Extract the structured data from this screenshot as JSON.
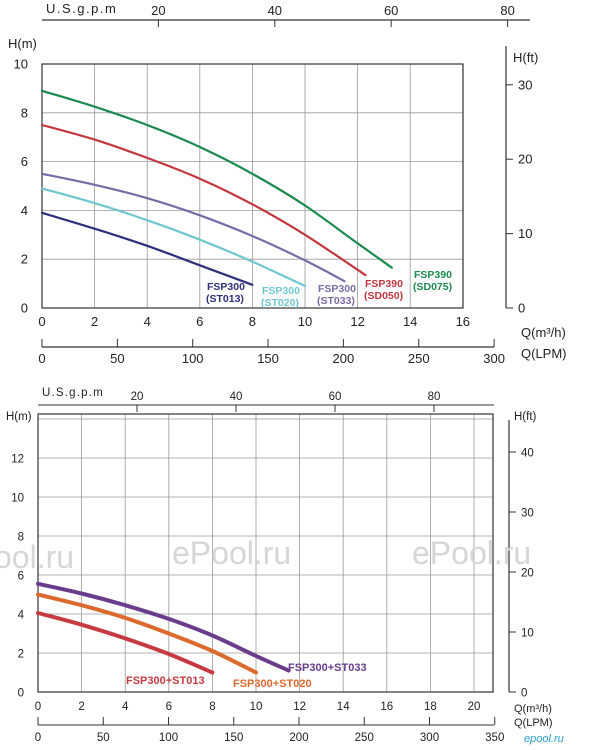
{
  "colors": {
    "navy": "#2f2f7a",
    "cyan": "#6fc6cf",
    "violet": "#7a6aa6",
    "red": "#c2373e",
    "green": "#1b8a4f",
    "axis": "#333333",
    "grid": "#9a9a9a",
    "top_purple": "#6a3d8c",
    "top_orange": "#dc6a2e",
    "top_red": "#c63a42",
    "watermark": "#cfcfcf",
    "logo": "#2a9fd0"
  },
  "chart_data": [
    {
      "type": "line",
      "usgpm_label": "U.S.g.p.m",
      "usgpm_ticks": [
        "20",
        "40",
        "60",
        "80"
      ],
      "hm_label": "H(m)",
      "hft_label": "H(ft)",
      "q_m3h_label": "Q(m³/h)",
      "q_lpm_label": "Q(LPM)",
      "x_m3h_ticks": [
        "0",
        "2",
        "4",
        "6",
        "8",
        "10",
        "12",
        "14",
        "16"
      ],
      "x_lpm_ticks": [
        "0",
        "50",
        "100",
        "150",
        "200",
        "250",
        "300"
      ],
      "y_m_ticks": [
        "0",
        "2",
        "4",
        "6",
        "8",
        "10"
      ],
      "y_ft_ticks": [
        "0",
        "10",
        "20",
        "30"
      ],
      "xlim": [
        0,
        16
      ],
      "ylim": [
        0,
        10
      ],
      "grid": true,
      "series": [
        {
          "name": "FSP300",
          "model": "(ST013)",
          "color": "navy",
          "x": [
            0,
            2,
            4,
            6,
            8
          ],
          "y": [
            3.9,
            3.25,
            2.55,
            1.75,
            0.95
          ]
        },
        {
          "name": "FSP300",
          "model": "(ST020)",
          "color": "cyan",
          "x": [
            0,
            2,
            4,
            6,
            8,
            10
          ],
          "y": [
            4.9,
            4.3,
            3.6,
            2.8,
            1.9,
            0.9
          ]
        },
        {
          "name": "FSP300",
          "model": "(ST033)",
          "color": "violet",
          "x": [
            0,
            2,
            4,
            6,
            8,
            10,
            11.5
          ],
          "y": [
            5.5,
            5.05,
            4.5,
            3.8,
            2.95,
            1.95,
            1.1
          ]
        },
        {
          "name": "FSP390",
          "model": "(SD050)",
          "color": "red",
          "x": [
            0,
            2,
            4,
            6,
            8,
            10,
            12.3
          ],
          "y": [
            7.5,
            6.9,
            6.15,
            5.3,
            4.25,
            3.0,
            1.35
          ]
        },
        {
          "name": "FSP390",
          "model": "(SD075)",
          "color": "green",
          "x": [
            0,
            2,
            4,
            6,
            8,
            10,
            12,
            13.3
          ],
          "y": [
            8.9,
            8.25,
            7.5,
            6.6,
            5.5,
            4.2,
            2.65,
            1.65
          ]
        }
      ]
    },
    {
      "type": "line",
      "usgpm_label": "U.S.g.p.m",
      "usgpm_ticks": [
        "20",
        "40",
        "60",
        "80"
      ],
      "hm_label": "H(m)",
      "hft_label": "H(ft)",
      "q_m3h_label": "Q(m³/h)",
      "q_lpm_label": "Q(LPM)",
      "x_m3h_ticks": [
        "0",
        "2",
        "4",
        "6",
        "8",
        "10",
        "12",
        "14",
        "16",
        "18",
        "20"
      ],
      "x_lpm_ticks": [
        "0",
        "50",
        "100",
        "150",
        "200",
        "250",
        "300",
        "350"
      ],
      "y_m_ticks": [
        "0",
        "2",
        "4",
        "6",
        "8",
        "10",
        "12"
      ],
      "y_ft_ticks": [
        "0",
        "10",
        "20",
        "30",
        "40"
      ],
      "xlim": [
        0,
        21
      ],
      "ylim": [
        0,
        14
      ],
      "grid": true,
      "series": [
        {
          "name": "FSP300+ST013",
          "color": "top_red",
          "x": [
            0,
            2,
            4,
            6,
            8
          ],
          "y": [
            4.05,
            3.45,
            2.75,
            1.95,
            1.0
          ]
        },
        {
          "name": "FSP300+ST020",
          "color": "top_orange",
          "x": [
            0,
            2,
            4,
            6,
            8,
            10
          ],
          "y": [
            5.0,
            4.45,
            3.8,
            3.0,
            2.1,
            1.0
          ]
        },
        {
          "name": "FSP300+ST033",
          "color": "top_purple",
          "x": [
            0,
            2,
            4,
            6,
            8,
            10,
            11.5
          ],
          "y": [
            5.55,
            5.05,
            4.45,
            3.75,
            2.9,
            1.85,
            1.1
          ]
        }
      ]
    }
  ],
  "watermark": {
    "text": "ePool.ru",
    "left_fragment": "ool.ru",
    "logo": "epool.ru"
  }
}
